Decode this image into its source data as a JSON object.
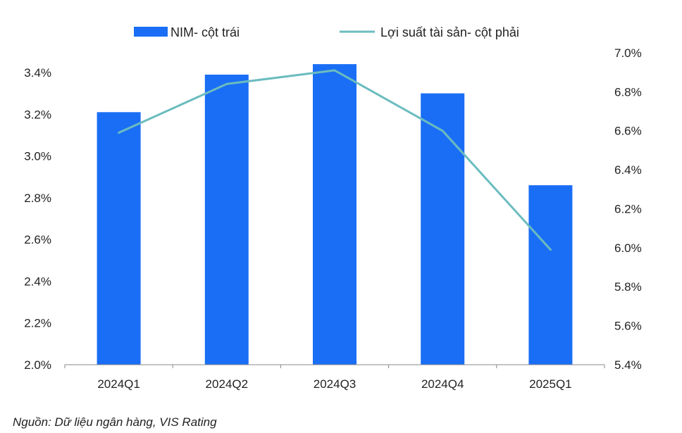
{
  "chart_data": {
    "type": "bar",
    "categories": [
      "2024Q1",
      "2024Q2",
      "2024Q3",
      "2024Q4",
      "2025Q1"
    ],
    "series": [
      {
        "name": "NIM- cột trái",
        "kind": "bar",
        "axis": "left",
        "color": "#1a6ef5",
        "values": [
          3.21,
          3.39,
          3.44,
          3.3,
          2.86
        ]
      },
      {
        "name": "Lợi suất tài sản- cột phải",
        "kind": "line",
        "axis": "right",
        "color": "#6bbcbf",
        "values": [
          6.59,
          6.84,
          6.91,
          6.6,
          5.99
        ]
      }
    ],
    "left_axis": {
      "min": 2.0,
      "max": 3.4,
      "step": 0.2,
      "format": "percent_1dp"
    },
    "right_axis": {
      "min": 5.4,
      "max": 7.0,
      "step": 0.2,
      "format": "percent_1dp"
    },
    "legend_position": "top",
    "grid": false
  },
  "source_note": "Nguồn: Dữ liệu ngân hàng, VIS Rating"
}
